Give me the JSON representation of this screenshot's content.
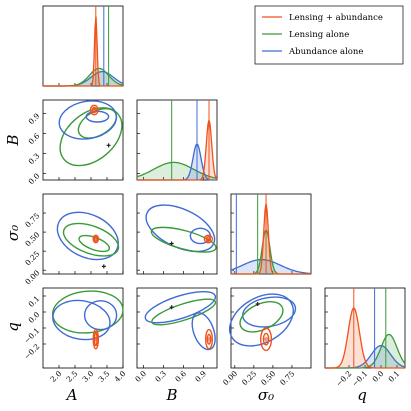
{
  "chart_data": {
    "type": "scatter",
    "subtype": "corner-plot",
    "parameters": [
      "A",
      "B",
      "σ0",
      "q"
    ],
    "axis_labels": {
      "A": "A",
      "B": "B",
      "sigma0": "σ₀",
      "q": "q"
    },
    "ranges": {
      "A": [
        1.5,
        4.0
      ],
      "B": [
        -0.1,
        1.1
      ],
      "sigma0": [
        -0.05,
        1.0
      ],
      "q": [
        -0.35,
        0.15
      ]
    },
    "ticks": {
      "A": [
        "2.0",
        "2.5",
        "3.0",
        "3.5",
        "4.0"
      ],
      "B": [
        "0.0",
        "0.3",
        "0.6",
        "0.9"
      ],
      "sigma0": [
        "0.00",
        "0.25",
        "0.50",
        "0.75"
      ],
      "q": [
        "−0.2",
        "−0.1",
        "0.0",
        "0.1"
      ],
      "q_bottom": [
        "−0.2",
        "−0.1",
        "0.0",
        "0.1"
      ],
      "B_left": [
        "0.0",
        "0.3",
        "0.6",
        "0.9"
      ],
      "sigma0_left": [
        "0.00",
        "0.25",
        "0.50",
        "0.75"
      ],
      "q_left": [
        "−0.2",
        "−0.1",
        "0.0",
        "0.1"
      ]
    },
    "ticks_values": {
      "A": [
        2.0,
        2.5,
        3.0,
        3.5,
        4.0
      ],
      "B": [
        0.0,
        0.3,
        0.6,
        0.9
      ],
      "sigma0": [
        0.0,
        0.25,
        0.5,
        0.75
      ],
      "q": [
        -0.2,
        -0.1,
        0.0,
        0.1
      ]
    },
    "series": [
      {
        "name": "Lensing + abundance",
        "color": "#f0521b",
        "medians": {
          "A": 3.15,
          "B": 0.98,
          "sigma0": 0.41,
          "q": -0.17
        },
        "marginal_peaks": {
          "A": 3.15,
          "B": 0.98,
          "sigma0": 0.41,
          "q": -0.17
        }
      },
      {
        "name": "Lensing alone",
        "color": "#3a9a3a",
        "medians": {
          "A": 3.55,
          "B": 0.42,
          "sigma0": 0.3,
          "q": 0.03
        },
        "marginal_peaks": {
          "A": 3.45,
          "B": 0.5,
          "sigma0": 0.41,
          "q": 0.02
        }
      },
      {
        "name": "Abundance alone",
        "color": "#3e6cd4",
        "medians": {
          "A": 3.4,
          "B": 0.8,
          "sigma0": 0.02,
          "q": -0.04
        },
        "marginal_peaks": {
          "A": 3.4,
          "B": 0.8,
          "sigma0": 0.35,
          "q": -0.04
        }
      }
    ],
    "legend": [
      "Lensing + abundance",
      "Lensing alone",
      "Abundance alone"
    ],
    "legend_position": "top-right",
    "grid": false
  },
  "colors": {
    "orange": "#f0521b",
    "green": "#3a9a3a",
    "blue": "#3e6cd4"
  }
}
